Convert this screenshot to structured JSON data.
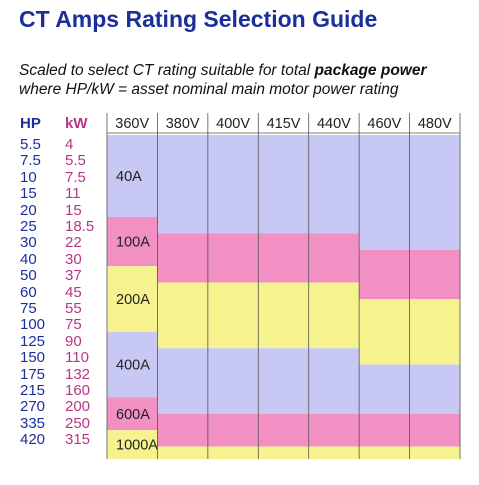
{
  "title": "CT Amps Rating Selection Guide",
  "subtitle_line1_prefix": "Scaled to select CT rating suitable for total ",
  "subtitle_line1_bold": "package power",
  "subtitle_line2": "where HP/kW = asset nominal main motor power rating",
  "columns": {
    "hp_header": "HP",
    "kw_header": "kW"
  },
  "chart_data": {
    "type": "table",
    "voltages": [
      "360V",
      "380V",
      "400V",
      "415V",
      "440V",
      "460V",
      "480V"
    ],
    "hp": [
      "5.5",
      "7.5",
      "10",
      "15",
      "20",
      "25",
      "30",
      "40",
      "50",
      "60",
      "75",
      "100",
      "125",
      "150",
      "175",
      "215",
      "270",
      "335",
      "420"
    ],
    "kw": [
      "4",
      "5.5",
      "7.5",
      "11",
      "15",
      "18.5",
      "22",
      "30",
      "37",
      "45",
      "55",
      "75",
      "90",
      "110",
      "132",
      "160",
      "200",
      "250",
      "315"
    ],
    "ratings": [
      "40A",
      "100A",
      "200A",
      "400A",
      "600A",
      "1000A"
    ],
    "colors": {
      "40A": "#c8c8f4",
      "100A": "#f28fc3",
      "200A": "#f6f38e",
      "400A": "#c8c8f4",
      "600A": "#f28fc3",
      "1000A": "#f6f38e"
    },
    "row_unit": "kW row index (0 = 4 kW, 18 = 315 kW)",
    "rating_start_row_by_voltage": [
      [
        0,
        5,
        8,
        12,
        16,
        18
      ],
      [
        0,
        6,
        9,
        13,
        17,
        19
      ],
      [
        0,
        6,
        9,
        13,
        17,
        19
      ],
      [
        0,
        6,
        9,
        13,
        17,
        19
      ],
      [
        0,
        6,
        9,
        13,
        17,
        19
      ],
      [
        0,
        7,
        10,
        14,
        17,
        19
      ],
      [
        0,
        7,
        10,
        14,
        17,
        19
      ]
    ],
    "band_end_row": 20
  }
}
